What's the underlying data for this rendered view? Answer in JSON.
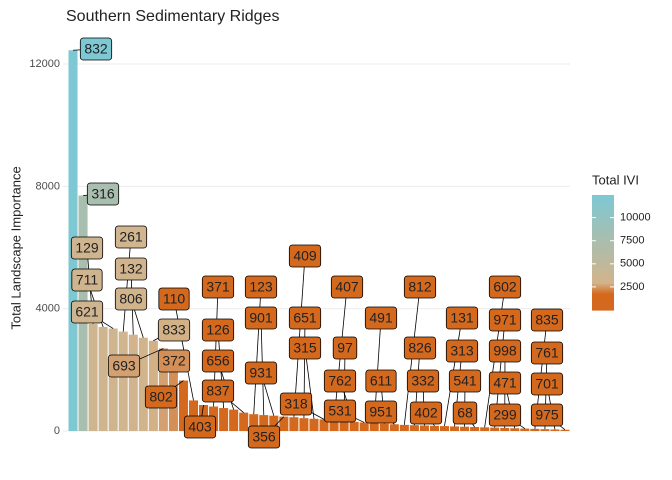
{
  "chart_data": {
    "type": "bar",
    "title": "Southern Sedimentary Ridges",
    "y_label": "Total Landscape Importance",
    "categories": [
      "832",
      "316",
      "129",
      "711",
      "621",
      "261",
      "132",
      "806",
      "833",
      "693",
      "372",
      "802",
      "110",
      "403",
      "371",
      "126",
      "656",
      "837",
      "123",
      "901",
      "931",
      "356",
      "409",
      "651",
      "315",
      "318",
      "407",
      "97",
      "762",
      "531",
      "491",
      "611",
      "951",
      "812",
      "826",
      "332",
      "402",
      "131",
      "313",
      "541",
      "68",
      "602",
      "971",
      "998",
      "471",
      "299",
      "835",
      "761",
      "701",
      "975"
    ],
    "values": [
      12450,
      7700,
      3500,
      3400,
      3350,
      3250,
      3150,
      3050,
      2950,
      2700,
      2400,
      1650,
      1000,
      850,
      800,
      750,
      700,
      600,
      550,
      520,
      500,
      470,
      450,
      420,
      400,
      380,
      350,
      320,
      300,
      280,
      260,
      240,
      220,
      200,
      190,
      180,
      170,
      160,
      150,
      140,
      130,
      120,
      110,
      100,
      90,
      80,
      70,
      60,
      50,
      40
    ],
    "ylim": [
      0,
      12900
    ],
    "yticks": [
      0,
      4000,
      8000,
      12000
    ],
    "grid": true,
    "colorbar": {
      "title": "Total IVI",
      "lim": [
        0,
        12450
      ],
      "ticks": [
        2500,
        5000,
        7500,
        10000
      ],
      "stops": [
        0,
        1800,
        3000,
        12450
      ],
      "colors": [
        "#d4691e",
        "#d4691e",
        "#d2b48c",
        "#7ec8d3"
      ]
    }
  }
}
